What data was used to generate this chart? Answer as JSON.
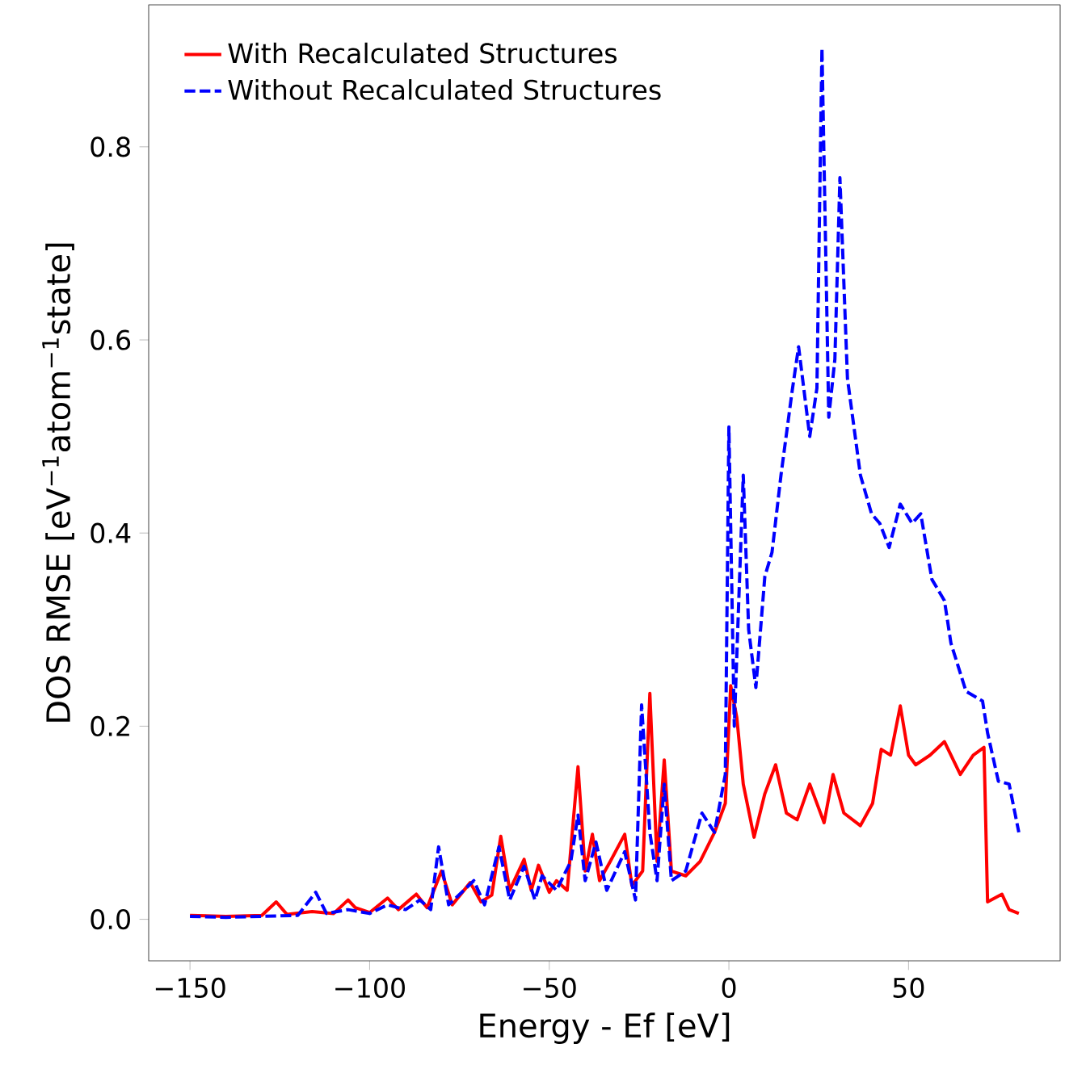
{
  "chart_data": {
    "type": "line",
    "xlabel": "Energy - Ef [eV]",
    "ylabel": "DOS RMSE [eV$^{−1}$atom$^{−1}$state]",
    "xlim": [
      -161.5,
      92.2
    ],
    "ylim": [
      -0.043,
      0.947
    ],
    "xticks": [
      {
        "value": -150,
        "label": "−150"
      },
      {
        "value": -100,
        "label": "−100"
      },
      {
        "value": -50,
        "label": "−50"
      },
      0,
      50
    ],
    "yticks": [
      {
        "value": 0,
        "label": "0.0"
      },
      0.2,
      0.4,
      0.6,
      0.8
    ],
    "legend": "top left",
    "grid": false,
    "series": [
      {
        "name": "With Recalculated Structures",
        "color": "#ff0000",
        "line_style": "solid",
        "x": [
          -150,
          -140,
          -130,
          -126,
          -123,
          -116,
          -110,
          -106,
          -104,
          -100,
          -95,
          -92,
          -87,
          -84,
          -80,
          -77,
          -72,
          -69,
          -66,
          -63.5,
          -61,
          -57,
          -55,
          -53,
          -50,
          -48,
          -45,
          -42,
          -40,
          -38,
          -36,
          -33,
          -29,
          -27,
          -24,
          -22,
          -20,
          -18,
          -16,
          -12,
          -8,
          -4,
          -1,
          0.5,
          2.2,
          4,
          7,
          10,
          13,
          16,
          19,
          22.5,
          26.5,
          29,
          32,
          36.6,
          40,
          42.4,
          45,
          47.7,
          50,
          52,
          56,
          60,
          64.4,
          68,
          71,
          72,
          76,
          78,
          80.7
        ],
        "values": [
          0.004,
          0.003,
          0.004,
          0.018,
          0.005,
          0.008,
          0.006,
          0.02,
          0.012,
          0.007,
          0.022,
          0.01,
          0.026,
          0.012,
          0.05,
          0.015,
          0.038,
          0.018,
          0.025,
          0.086,
          0.03,
          0.062,
          0.03,
          0.056,
          0.028,
          0.04,
          0.03,
          0.158,
          0.05,
          0.088,
          0.04,
          0.06,
          0.088,
          0.035,
          0.05,
          0.234,
          0.06,
          0.165,
          0.05,
          0.045,
          0.06,
          0.09,
          0.12,
          0.242,
          0.209,
          0.14,
          0.085,
          0.13,
          0.16,
          0.11,
          0.103,
          0.14,
          0.1,
          0.15,
          0.11,
          0.097,
          0.12,
          0.176,
          0.17,
          0.221,
          0.17,
          0.16,
          0.17,
          0.184,
          0.15,
          0.17,
          0.178,
          0.018,
          0.026,
          0.01,
          0.006
        ]
      },
      {
        "name": "Without Recalculated Structures",
        "color": "#0000ff",
        "line_style": "dashed",
        "x": [
          -150,
          -140,
          -130,
          -120,
          -115,
          -112,
          -106,
          -100,
          -95,
          -90,
          -86,
          -83,
          -80.8,
          -78,
          -71,
          -68,
          -64,
          -61,
          -57,
          -54,
          -52,
          -48,
          -44,
          -42,
          -40,
          -37,
          -34,
          -29,
          -26,
          -24.3,
          -22,
          -20,
          -18,
          -16,
          -12,
          -7.5,
          -4,
          -1,
          0,
          1.5,
          4,
          5.5,
          7.5,
          10,
          12,
          14.5,
          17.6,
          19.4,
          22.5,
          24.5,
          25.9,
          27.8,
          29.5,
          30.9,
          33,
          36.6,
          39.7,
          42,
          44.6,
          47.7,
          51,
          53.4,
          56.5,
          60,
          61.8,
          66,
          70.6,
          72,
          75,
          78,
          80.7
        ],
        "values": [
          0.003,
          0.002,
          0.003,
          0.004,
          0.028,
          0.006,
          0.01,
          0.006,
          0.015,
          0.01,
          0.02,
          0.01,
          0.075,
          0.015,
          0.04,
          0.015,
          0.075,
          0.02,
          0.055,
          0.02,
          0.045,
          0.03,
          0.06,
          0.108,
          0.04,
          0.08,
          0.03,
          0.07,
          0.02,
          0.222,
          0.09,
          0.04,
          0.14,
          0.04,
          0.05,
          0.11,
          0.09,
          0.15,
          0.51,
          0.2,
          0.46,
          0.3,
          0.24,
          0.355,
          0.38,
          0.46,
          0.547,
          0.593,
          0.5,
          0.55,
          0.902,
          0.52,
          0.58,
          0.768,
          0.56,
          0.46,
          0.42,
          0.41,
          0.385,
          0.43,
          0.41,
          0.42,
          0.352,
          0.33,
          0.286,
          0.236,
          0.226,
          0.193,
          0.143,
          0.14,
          0.09
        ]
      }
    ]
  }
}
